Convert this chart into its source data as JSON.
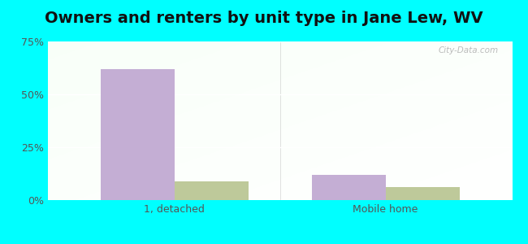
{
  "title": "Owners and renters by unit type in Jane Lew, WV",
  "categories": [
    "1, detached",
    "Mobile home"
  ],
  "owner_values": [
    62,
    12
  ],
  "renter_values": [
    9,
    6
  ],
  "owner_color": "#c4aed4",
  "renter_color": "#bec99a",
  "bar_width": 0.35,
  "ylim": [
    0,
    75
  ],
  "yticks": [
    0,
    25,
    50,
    75
  ],
  "ytick_labels": [
    "0%",
    "25%",
    "50%",
    "75%"
  ],
  "bg_color_top_left": "#ceeace",
  "bg_color_right": "#eaf6ea",
  "bg_color_bottom": "#daf0da",
  "outer_bg": "#00ffff",
  "watermark": "City-Data.com",
  "title_fontsize": 14,
  "tick_fontsize": 9,
  "legend_fontsize": 9,
  "grid_color": "#ffffff"
}
